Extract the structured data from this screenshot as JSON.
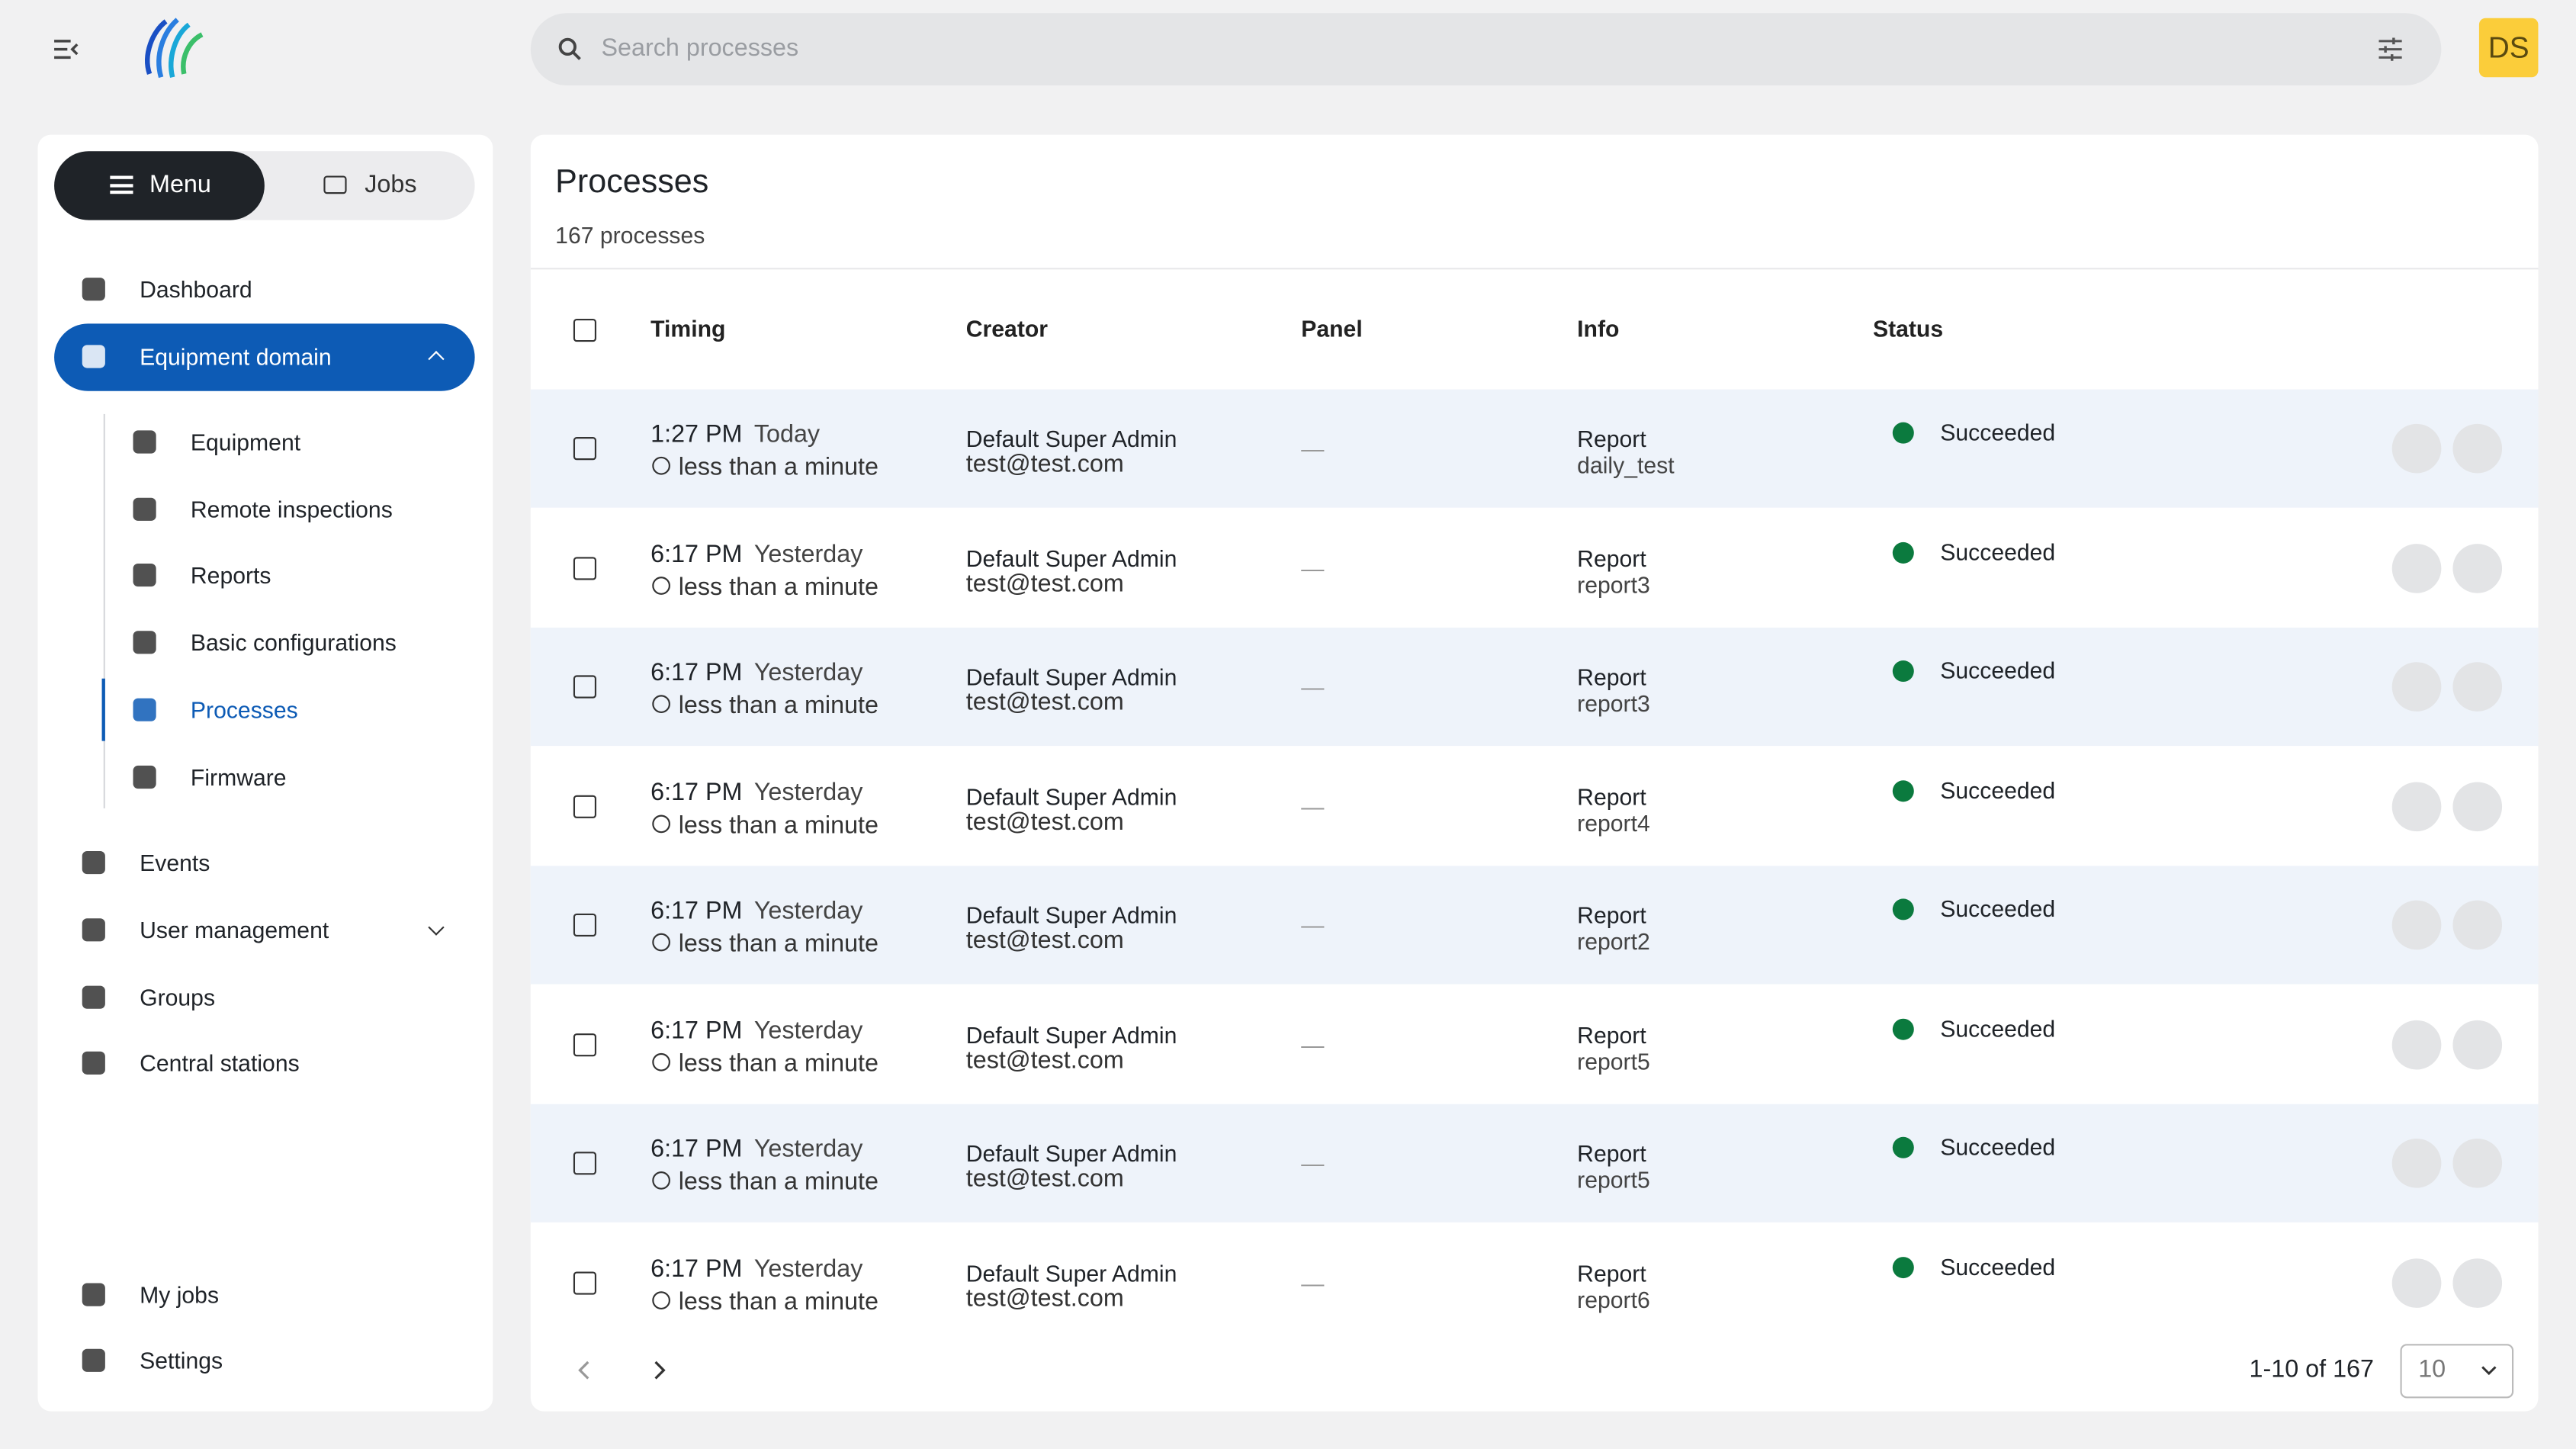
{
  "header": {
    "search_placeholder": "Search processes",
    "avatar": "DS"
  },
  "sidebar": {
    "tabs": [
      "Menu",
      "Jobs"
    ],
    "items": [
      "Dashboard",
      "Equipment domain"
    ],
    "sub_items": [
      "Equipment",
      "Remote inspections",
      "Reports",
      "Basic configurations",
      "Processes",
      "Firmware"
    ],
    "more_items": [
      "Events",
      "User management",
      "Groups",
      "Central stations"
    ],
    "bottom_items": [
      "My jobs",
      "Settings"
    ]
  },
  "main": {
    "title": "Processes",
    "subtitle": "167 processes",
    "columns": [
      "Timing",
      "Creator",
      "Panel",
      "Info",
      "Status"
    ],
    "rows": [
      {
        "time": "1:27 PM",
        "day": "Today",
        "relative": "less than a minute",
        "creator": "Default Super Admin",
        "email": "test@test.com",
        "panel": "—",
        "info_type": "Report",
        "info_name": "daily_test",
        "status": "Succeeded"
      },
      {
        "time": "6:17 PM",
        "day": "Yesterday",
        "relative": "less than a minute",
        "creator": "Default Super Admin",
        "email": "test@test.com",
        "panel": "—",
        "info_type": "Report",
        "info_name": "report3",
        "status": "Succeeded"
      },
      {
        "time": "6:17 PM",
        "day": "Yesterday",
        "relative": "less than a minute",
        "creator": "Default Super Admin",
        "email": "test@test.com",
        "panel": "—",
        "info_type": "Report",
        "info_name": "report3",
        "status": "Succeeded"
      },
      {
        "time": "6:17 PM",
        "day": "Yesterday",
        "relative": "less than a minute",
        "creator": "Default Super Admin",
        "email": "test@test.com",
        "panel": "—",
        "info_type": "Report",
        "info_name": "report4",
        "status": "Succeeded"
      },
      {
        "time": "6:17 PM",
        "day": "Yesterday",
        "relative": "less than a minute",
        "creator": "Default Super Admin",
        "email": "test@test.com",
        "panel": "—",
        "info_type": "Report",
        "info_name": "report2",
        "status": "Succeeded"
      },
      {
        "time": "6:17 PM",
        "day": "Yesterday",
        "relative": "less than a minute",
        "creator": "Default Super Admin",
        "email": "test@test.com",
        "panel": "—",
        "info_type": "Report",
        "info_name": "report5",
        "status": "Succeeded"
      },
      {
        "time": "6:17 PM",
        "day": "Yesterday",
        "relative": "less than a minute",
        "creator": "Default Super Admin",
        "email": "test@test.com",
        "panel": "—",
        "info_type": "Report",
        "info_name": "report5",
        "status": "Succeeded"
      },
      {
        "time": "6:17 PM",
        "day": "Yesterday",
        "relative": "less than a minute",
        "creator": "Default Super Admin",
        "email": "test@test.com",
        "panel": "—",
        "info_type": "Report",
        "info_name": "report6",
        "status": "Succeeded"
      }
    ],
    "pagination": {
      "range": "1-10 of 167",
      "page_size": "10"
    }
  }
}
